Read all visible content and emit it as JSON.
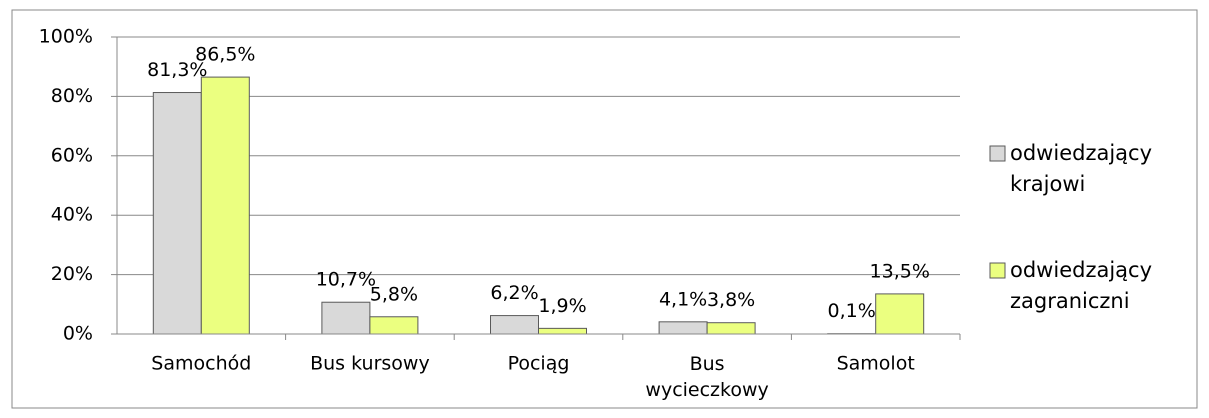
{
  "chart_data": {
    "type": "bar",
    "categories": [
      "Samochód",
      "Bus kursowy",
      "Pociąg",
      "Bus wycieczkowy",
      "Samolot"
    ],
    "series": [
      {
        "name": "odwiedzający krajowi",
        "color": "#d9d9d9",
        "values": [
          81.3,
          10.7,
          6.2,
          4.1,
          0.1
        ],
        "value_labels": [
          "81,3%",
          "10,7%",
          "6,2%",
          "4,1%",
          "0,1%"
        ]
      },
      {
        "name": "odwiedzający zagraniczni",
        "color": "#ebff80",
        "values": [
          86.5,
          5.8,
          1.9,
          3.8,
          13.5
        ],
        "value_labels": [
          "86,5%",
          "5,8%",
          "1,9%",
          "3,8%",
          "13,5%"
        ]
      }
    ],
    "ylim": [
      0,
      100
    ],
    "yticks": [
      {
        "value": 0,
        "label": "0%"
      },
      {
        "value": 20,
        "label": "20%"
      },
      {
        "value": 40,
        "label": "40%"
      },
      {
        "value": 60,
        "label": "60%"
      },
      {
        "value": 80,
        "label": "80%"
      },
      {
        "value": 100,
        "label": "100%"
      }
    ],
    "grid": true,
    "legend": "right"
  }
}
